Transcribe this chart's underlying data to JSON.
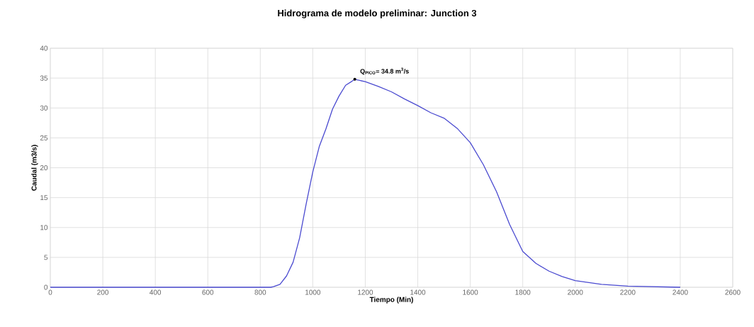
{
  "chart_data": {
    "type": "line",
    "title": "Hidrograma de modelo preliminar: Junction 3",
    "xlabel": "Tiempo (Min)",
    "ylabel": "Caudal (m3/s)",
    "xlim": [
      0,
      2600
    ],
    "ylim": [
      0,
      40
    ],
    "xticks": [
      0,
      200,
      400,
      600,
      800,
      1000,
      1200,
      1400,
      1600,
      1800,
      2000,
      2200,
      2400,
      2600
    ],
    "yticks": [
      0,
      5,
      10,
      15,
      20,
      25,
      30,
      35,
      40
    ],
    "grid": true,
    "marker": "none",
    "line_style": "solid",
    "series": [
      {
        "color": "#4a4ad0",
        "x": [
          0,
          200,
          400,
          600,
          800,
          840,
          850,
          875,
          900,
          925,
          950,
          975,
          1000,
          1025,
          1050,
          1075,
          1100,
          1125,
          1150,
          1160,
          1200,
          1250,
          1300,
          1350,
          1400,
          1450,
          1500,
          1550,
          1600,
          1650,
          1700,
          1750,
          1800,
          1850,
          1900,
          1950,
          2000,
          2100,
          2200,
          2300,
          2400
        ],
        "values": [
          0,
          0,
          0,
          0,
          0,
          0,
          0.1,
          0.5,
          1.9,
          4.2,
          8.3,
          14,
          19.3,
          23.6,
          26.5,
          29.8,
          32,
          33.8,
          34.5,
          34.8,
          34.4,
          33.6,
          32.7,
          31.5,
          30.4,
          29.2,
          28.3,
          26.6,
          24.2,
          20.5,
          16,
          10.5,
          6,
          4,
          2.7,
          1.8,
          1.1,
          0.5,
          0.2,
          0.1,
          0
        ]
      }
    ],
    "annotations": [
      {
        "text": "Q$_{PICO}$= 34.8 m$^{3}$/s",
        "x": 1160,
        "y": 34.8
      }
    ]
  }
}
